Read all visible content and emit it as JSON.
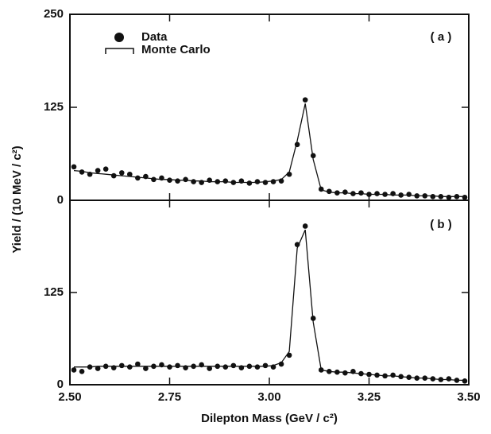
{
  "chart_data": [
    {
      "type": "scatter",
      "annotation": "( a )",
      "ylabel": "Yield / (10 MeV / c²)",
      "legend": "upper left",
      "x": [
        2.51,
        2.53,
        2.55,
        2.57,
        2.59,
        2.61,
        2.63,
        2.65,
        2.67,
        2.69,
        2.71,
        2.73,
        2.75,
        2.77,
        2.79,
        2.81,
        2.83,
        2.85,
        2.87,
        2.89,
        2.91,
        2.93,
        2.95,
        2.97,
        2.99,
        3.01,
        3.03,
        3.05,
        3.07,
        3.09,
        3.11,
        3.13,
        3.15,
        3.17,
        3.19,
        3.21,
        3.23,
        3.25,
        3.27,
        3.29,
        3.31,
        3.33,
        3.35,
        3.37,
        3.39,
        3.41,
        3.43,
        3.45,
        3.47,
        3.49
      ],
      "series": [
        {
          "name": "Data",
          "color": "#111111",
          "values": [
            45,
            38,
            35,
            40,
            42,
            33,
            37,
            35,
            30,
            32,
            28,
            30,
            27,
            26,
            28,
            25,
            24,
            27,
            25,
            26,
            24,
            26,
            23,
            25,
            24,
            25,
            26,
            35,
            75,
            135,
            60,
            15,
            12,
            10,
            11,
            9,
            10,
            8,
            9,
            8,
            9,
            7,
            8,
            6,
            6,
            5,
            5,
            4,
            5,
            4
          ]
        },
        {
          "name": "Monte Carlo",
          "color": "#111111",
          "values": [
            40,
            39,
            37,
            36,
            35,
            34,
            33,
            32,
            31,
            30,
            29,
            28,
            28,
            27,
            27,
            26,
            26,
            25,
            25,
            25,
            24,
            24,
            24,
            24,
            25,
            26,
            28,
            38,
            80,
            130,
            55,
            14,
            11,
            10,
            10,
            9,
            9,
            8,
            8,
            8,
            7,
            7,
            7,
            6,
            6,
            6,
            5,
            5,
            5,
            5
          ]
        }
      ],
      "xlim": [
        2.5,
        3.5
      ],
      "ylim": [
        0,
        250
      ],
      "yticks": [
        0,
        125,
        250
      ]
    },
    {
      "type": "scatter",
      "annotation": "( b )",
      "xlabel": "Dilepton Mass  (GeV / c²)",
      "x": [
        2.51,
        2.53,
        2.55,
        2.57,
        2.59,
        2.61,
        2.63,
        2.65,
        2.67,
        2.69,
        2.71,
        2.73,
        2.75,
        2.77,
        2.79,
        2.81,
        2.83,
        2.85,
        2.87,
        2.89,
        2.91,
        2.93,
        2.95,
        2.97,
        2.99,
        3.01,
        3.03,
        3.05,
        3.07,
        3.09,
        3.11,
        3.13,
        3.15,
        3.17,
        3.19,
        3.21,
        3.23,
        3.25,
        3.27,
        3.29,
        3.31,
        3.33,
        3.35,
        3.37,
        3.39,
        3.41,
        3.43,
        3.45,
        3.47,
        3.49
      ],
      "series": [
        {
          "name": "Data",
          "color": "#111111",
          "values": [
            20,
            18,
            24,
            22,
            25,
            23,
            26,
            24,
            28,
            22,
            25,
            27,
            24,
            26,
            23,
            25,
            27,
            22,
            25,
            24,
            26,
            23,
            25,
            24,
            26,
            24,
            28,
            40,
            190,
            215,
            90,
            20,
            18,
            17,
            16,
            18,
            15,
            14,
            13,
            12,
            13,
            11,
            10,
            9,
            9,
            8,
            7,
            8,
            6,
            5
          ]
        },
        {
          "name": "Monte Carlo",
          "color": "#111111",
          "values": [
            24,
            24,
            24,
            25,
            25,
            25,
            25,
            25,
            25,
            25,
            25,
            25,
            25,
            25,
            25,
            25,
            25,
            25,
            25,
            25,
            25,
            25,
            25,
            25,
            25,
            26,
            30,
            45,
            185,
            210,
            85,
            20,
            18,
            17,
            17,
            16,
            15,
            14,
            13,
            12,
            12,
            11,
            10,
            9,
            9,
            8,
            7,
            7,
            6,
            6
          ]
        }
      ],
      "xlim": [
        2.5,
        3.5
      ],
      "ylim": [
        0,
        250
      ],
      "yticks": [
        0,
        125
      ],
      "xticks": [
        {
          "value": 2.5,
          "label": "2.50"
        },
        {
          "value": 2.75,
          "label": "2.75"
        },
        {
          "value": 3.0,
          "label": "3.00"
        },
        {
          "value": 3.25,
          "label": "3.25"
        },
        {
          "value": 3.5,
          "label": "3.50"
        }
      ]
    }
  ]
}
